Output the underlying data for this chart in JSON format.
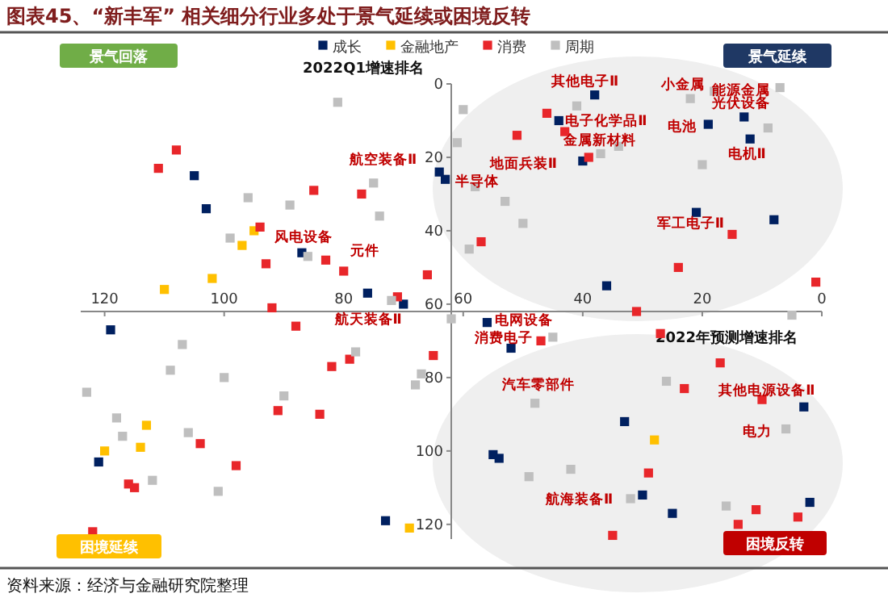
{
  "chart_data": {
    "type": "scatter",
    "title": "图表45、“新丰军” 相关细分行业多处于景气延续或困境反转",
    "xlabel": "2022年预测增速排名",
    "ylabel": "2022Q1增速排名",
    "xlim": [
      124,
      0
    ],
    "ylim": [
      124,
      0
    ],
    "xticks": [
      0,
      20,
      40,
      60,
      80,
      100,
      120
    ],
    "yticks": [
      0,
      20,
      40,
      60,
      80,
      100,
      120
    ],
    "grid": false,
    "legend": "top",
    "marker": "square",
    "series": [
      {
        "name": "成长",
        "color": "#002060",
        "x": [
          105,
          64,
          63,
          103,
          87,
          76,
          70,
          119,
          121,
          73,
          38,
          44,
          40,
          13,
          19,
          12,
          21,
          8,
          36,
          56,
          52,
          3,
          33,
          55,
          54,
          30,
          25,
          2
        ],
        "values": [
          25,
          24,
          26,
          34,
          46,
          57,
          60,
          67,
          103,
          119,
          3,
          10,
          21,
          9,
          11,
          15,
          35,
          37,
          55,
          65,
          72,
          88,
          92,
          101,
          102,
          112,
          117,
          114
        ]
      },
      {
        "name": "金融地产",
        "color": "#ffc000",
        "x": [
          95,
          97,
          102,
          110,
          113,
          114,
          120,
          69,
          28
        ],
        "values": [
          40,
          44,
          53,
          56,
          93,
          99,
          100,
          121,
          97
        ]
      },
      {
        "name": "消费",
        "color": "#e8262a",
        "x": [
          108,
          111,
          85,
          77,
          94,
          83,
          93,
          80,
          66,
          71,
          92,
          88,
          82,
          79,
          65,
          91,
          84,
          104,
          98,
          116,
          115,
          122,
          57,
          46,
          43,
          51,
          39,
          15,
          24,
          1,
          31,
          47,
          27,
          17,
          23,
          10,
          29,
          11,
          4,
          14,
          35
        ],
        "values": [
          18,
          23,
          29,
          30,
          39,
          48,
          49,
          51,
          52,
          58,
          61,
          66,
          77,
          75,
          74,
          89,
          90,
          98,
          104,
          109,
          110,
          122,
          43,
          8,
          13,
          14,
          20,
          41,
          50,
          54,
          62,
          70,
          68,
          76,
          83,
          86,
          106,
          116,
          118,
          120,
          123
        ]
      },
      {
        "name": "周期",
        "color": "#bfbfbf",
        "x": [
          81,
          75,
          96,
          89,
          74,
          99,
          86,
          72,
          107,
          109,
          100,
          78,
          67,
          68,
          123,
          90,
          118,
          117,
          106,
          112,
          101,
          60,
          61,
          58,
          59,
          41,
          34,
          37,
          53,
          50,
          22,
          18,
          7,
          9,
          20,
          5,
          62,
          45,
          26,
          48,
          6,
          42,
          49,
          32,
          16
        ],
        "values": [
          5,
          27,
          31,
          33,
          36,
          42,
          47,
          59,
          71,
          78,
          80,
          73,
          79,
          82,
          84,
          85,
          91,
          96,
          95,
          108,
          111,
          7,
          16,
          28,
          45,
          6,
          17,
          19,
          32,
          38,
          4,
          2,
          1,
          12,
          22,
          63,
          64,
          69,
          81,
          87,
          94,
          105,
          107,
          113,
          115
        ]
      }
    ],
    "annotations": [
      "景气回落",
      "景气延续",
      "困境延续",
      "困境反转",
      "资料来源：经济与金融研究院整理",
      {
        "text": "航空装备Ⅱ",
        "x": 64,
        "y": 24
      },
      {
        "text": "半导体",
        "x": 63,
        "y": 26
      },
      {
        "text": "风电设备",
        "x": 94,
        "y": 39
      },
      {
        "text": "元件",
        "x": 80,
        "y": 51
      },
      {
        "text": "航天装备Ⅱ",
        "x": 70,
        "y": 60
      },
      {
        "text": "其他电子Ⅱ",
        "x": 38,
        "y": 3
      },
      {
        "text": "电子化学品Ⅱ",
        "x": 44,
        "y": 10
      },
      {
        "text": "金属新材料",
        "x": 43,
        "y": 13
      },
      {
        "text": "地面兵装Ⅱ",
        "x": 40,
        "y": 21
      },
      {
        "text": "小金属",
        "x": 22,
        "y": 4
      },
      {
        "text": "能源金属",
        "x": 7,
        "y": 1
      },
      {
        "text": "光伏设备",
        "x": 13,
        "y": 9
      },
      {
        "text": "电池",
        "x": 19,
        "y": 11
      },
      {
        "text": "电机Ⅱ",
        "x": 12,
        "y": 15
      },
      {
        "text": "军工电子Ⅱ",
        "x": 15,
        "y": 41
      },
      {
        "text": "电网设备",
        "x": 56,
        "y": 65
      },
      {
        "text": "消费电子",
        "x": 47,
        "y": 70
      },
      {
        "text": "汽车零部件",
        "x": 48,
        "y": 87
      },
      {
        "text": "其他电源设备Ⅱ",
        "x": 10,
        "y": 86
      },
      {
        "text": "电力",
        "x": 6,
        "y": 94
      },
      {
        "text": "航海装备Ⅱ",
        "x": 32,
        "y": 113
      }
    ]
  }
}
